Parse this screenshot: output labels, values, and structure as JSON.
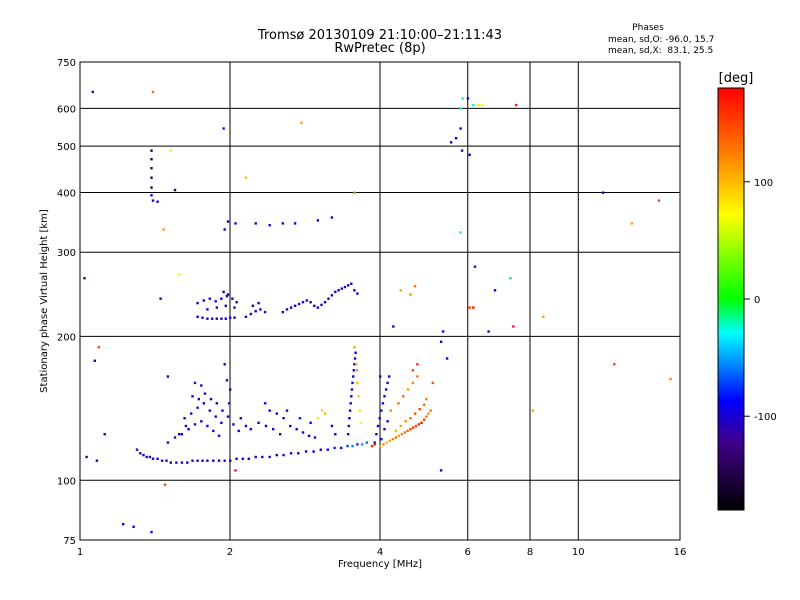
{
  "chart_data": {
    "type": "scatter",
    "title": "Tromsø 20130109 21:10:00–21:11:43",
    "subtitle": "RwPretec (8p)",
    "xlabel": "Frequency [MHz]",
    "ylabel": "Stationary phase Virtual Height [km]",
    "x_scale": "log",
    "y_scale": "log",
    "xlim": [
      1,
      16
    ],
    "ylim": [
      75,
      750
    ],
    "x_ticks": [
      1,
      2,
      4,
      6,
      8,
      10,
      16
    ],
    "y_ticks": [
      75,
      100,
      200,
      300,
      400,
      500,
      600,
      750
    ],
    "grid": true,
    "stats": {
      "title": "Phases",
      "line_o": "mean, sd,O: -96.0, 15.7",
      "line_x": "mean, sd,X:  83.1, 25.5"
    },
    "colorbar": {
      "label": "[deg]",
      "range": [
        -180,
        180
      ],
      "ticks": [
        100,
        0,
        -100
      ]
    },
    "points": [
      [
        1.02,
        265,
        -100
      ],
      [
        1.03,
        112,
        -110
      ],
      [
        1.06,
        650,
        -100
      ],
      [
        1.07,
        178,
        -100
      ],
      [
        1.09,
        190,
        150
      ],
      [
        1.12,
        125,
        -100
      ],
      [
        1.08,
        110,
        -100
      ],
      [
        1.22,
        81,
        -100
      ],
      [
        1.28,
        80,
        -100
      ],
      [
        1.39,
        78,
        -100
      ],
      [
        1.39,
        490,
        -150
      ],
      [
        1.39,
        470,
        -150
      ],
      [
        1.39,
        450,
        -140
      ],
      [
        1.39,
        430,
        -150
      ],
      [
        1.39,
        410,
        -160
      ],
      [
        1.39,
        395,
        -100
      ],
      [
        1.4,
        385,
        -90
      ],
      [
        1.43,
        383,
        -100
      ],
      [
        1.4,
        650,
        130
      ],
      [
        1.5,
        165,
        -100
      ],
      [
        1.55,
        405,
        -140
      ],
      [
        1.52,
        490,
        80
      ],
      [
        1.47,
        335,
        110
      ],
      [
        1.48,
        98,
        150
      ],
      [
        1.58,
        270,
        70
      ],
      [
        1.45,
        240,
        -100
      ],
      [
        1.94,
        545,
        -80
      ],
      [
        1.95,
        335,
        -100
      ],
      [
        1.98,
        348,
        -100
      ],
      [
        2.05,
        345,
        -100
      ],
      [
        2.05,
        105,
        170
      ],
      [
        2.15,
        430,
        100
      ],
      [
        2.25,
        345,
        -100
      ],
      [
        2.4,
        342,
        -100
      ],
      [
        2.55,
        345,
        -100
      ],
      [
        2.7,
        345,
        -100
      ],
      [
        2.78,
        560,
        110
      ],
      [
        3.0,
        350,
        -100
      ],
      [
        3.2,
        355,
        -120
      ],
      [
        3.55,
        400,
        120
      ],
      [
        4.0,
        165,
        -100
      ],
      [
        4.25,
        210,
        -100
      ],
      [
        4.4,
        250,
        110
      ],
      [
        4.6,
        245,
        120
      ],
      [
        4.7,
        255,
        130
      ],
      [
        5.3,
        195,
        -100
      ],
      [
        5.35,
        205,
        -100
      ],
      [
        5.3,
        105,
        -100
      ],
      [
        5.45,
        180,
        -90
      ],
      [
        5.1,
        160,
        140
      ],
      [
        5.05,
        140,
        130
      ],
      [
        5.55,
        510,
        -100
      ],
      [
        5.68,
        520,
        -100
      ],
      [
        5.8,
        545,
        -100
      ],
      [
        5.8,
        600,
        -20
      ],
      [
        5.85,
        630,
        -20
      ],
      [
        5.84,
        490,
        -100
      ],
      [
        5.8,
        330,
        -20
      ],
      [
        6.0,
        630,
        -100
      ],
      [
        6.05,
        480,
        -100
      ],
      [
        6.15,
        610,
        -20
      ],
      [
        6.3,
        610,
        80
      ],
      [
        6.4,
        610,
        70
      ],
      [
        6.2,
        280,
        -100
      ],
      [
        6.05,
        230,
        150
      ],
      [
        6.15,
        230,
        170
      ],
      [
        6.6,
        205,
        -100
      ],
      [
        6.8,
        250,
        -100
      ],
      [
        7.3,
        265,
        -40
      ],
      [
        7.4,
        210,
        170
      ],
      [
        7.5,
        610,
        170
      ],
      [
        8.1,
        140,
        110
      ],
      [
        8.5,
        220,
        110
      ],
      [
        11.2,
        400,
        -100
      ],
      [
        11.8,
        175,
        150
      ],
      [
        12.8,
        345,
        110
      ],
      [
        14.5,
        385,
        150
      ],
      [
        15.3,
        163,
        120
      ],
      [
        1.3,
        116,
        -110
      ],
      [
        1.32,
        114,
        -105
      ],
      [
        1.34,
        113,
        -100
      ],
      [
        1.36,
        112,
        -110
      ],
      [
        1.38,
        112,
        -100
      ],
      [
        1.4,
        111,
        -110
      ],
      [
        1.43,
        111,
        -100
      ],
      [
        1.46,
        110,
        -105
      ],
      [
        1.49,
        110,
        -110
      ],
      [
        1.52,
        109,
        -100
      ],
      [
        1.56,
        109,
        -110
      ],
      [
        1.6,
        109,
        -100
      ],
      [
        1.64,
        109,
        -105
      ],
      [
        1.68,
        110,
        -110
      ],
      [
        1.72,
        110,
        -100
      ],
      [
        1.76,
        110,
        -110
      ],
      [
        1.8,
        110,
        -100
      ],
      [
        1.85,
        110,
        -105
      ],
      [
        1.9,
        110,
        -110
      ],
      [
        1.95,
        110,
        -100
      ],
      [
        2.0,
        110,
        -105
      ],
      [
        2.06,
        111,
        -110
      ],
      [
        2.12,
        111,
        -100
      ],
      [
        2.18,
        111,
        -105
      ],
      [
        2.25,
        112,
        -110
      ],
      [
        2.32,
        112,
        -100
      ],
      [
        2.4,
        112,
        -105
      ],
      [
        2.48,
        113,
        -100
      ],
      [
        2.56,
        113,
        -110
      ],
      [
        2.65,
        114,
        -100
      ],
      [
        2.74,
        114,
        -105
      ],
      [
        2.84,
        115,
        -100
      ],
      [
        2.94,
        115,
        -90
      ],
      [
        3.04,
        116,
        -100
      ],
      [
        3.14,
        116,
        -90
      ],
      [
        3.24,
        117,
        -80
      ],
      [
        3.34,
        117,
        -90
      ],
      [
        3.44,
        118,
        -70
      ],
      [
        3.52,
        118,
        -60
      ],
      [
        3.6,
        119,
        -80
      ],
      [
        3.68,
        119,
        -50
      ],
      [
        3.76,
        120,
        -60
      ],
      [
        1.5,
        120,
        -100
      ],
      [
        1.55,
        123,
        -110
      ],
      [
        1.6,
        125,
        -100
      ],
      [
        1.65,
        128,
        -100
      ],
      [
        1.7,
        131,
        -110
      ],
      [
        1.75,
        133,
        -100
      ],
      [
        1.8,
        130,
        -100
      ],
      [
        1.85,
        127,
        -110
      ],
      [
        1.9,
        124,
        -100
      ],
      [
        1.62,
        135,
        -100
      ],
      [
        1.67,
        138,
        -110
      ],
      [
        1.72,
        142,
        -100
      ],
      [
        1.77,
        145,
        -100
      ],
      [
        1.82,
        140,
        -110
      ],
      [
        1.87,
        136,
        -100
      ],
      [
        1.92,
        132,
        -100
      ],
      [
        1.68,
        150,
        -100
      ],
      [
        1.73,
        148,
        -110
      ],
      [
        1.78,
        152,
        -100
      ],
      [
        1.83,
        148,
        -100
      ],
      [
        1.88,
        145,
        -110
      ],
      [
        1.93,
        140,
        -100
      ],
      [
        1.98,
        136,
        -100
      ],
      [
        2.03,
        131,
        -110
      ],
      [
        2.08,
        127,
        -100
      ],
      [
        1.7,
        160,
        -100
      ],
      [
        1.75,
        158,
        -110
      ],
      [
        1.95,
        175,
        -100
      ],
      [
        1.97,
        162,
        -100
      ],
      [
        2.0,
        155,
        -110
      ],
      [
        1.99,
        145,
        -100
      ],
      [
        1.58,
        125,
        -100
      ],
      [
        1.63,
        130,
        -110
      ],
      [
        2.1,
        135,
        -100
      ],
      [
        2.15,
        130,
        -100
      ],
      [
        2.2,
        128,
        -100
      ],
      [
        2.28,
        132,
        -110
      ],
      [
        2.36,
        130,
        -100
      ],
      [
        2.44,
        128,
        -100
      ],
      [
        2.52,
        125,
        -110
      ],
      [
        2.4,
        140,
        -100
      ],
      [
        2.48,
        138,
        -100
      ],
      [
        2.56,
        135,
        -110
      ],
      [
        2.64,
        130,
        -100
      ],
      [
        2.72,
        128,
        -100
      ],
      [
        2.8,
        126,
        -110
      ],
      [
        2.88,
        124,
        -100
      ],
      [
        2.96,
        123,
        -100
      ],
      [
        2.35,
        145,
        -90
      ],
      [
        2.6,
        140,
        -100
      ],
      [
        2.76,
        135,
        -80
      ],
      [
        2.9,
        132,
        -90
      ],
      [
        3.0,
        135,
        80
      ],
      [
        3.06,
        140,
        90
      ],
      [
        3.1,
        138,
        100
      ],
      [
        3.2,
        130,
        -100
      ],
      [
        3.25,
        125,
        -90
      ],
      [
        3.45,
        125,
        -100
      ],
      [
        3.46,
        130,
        -110
      ],
      [
        3.47,
        135,
        -100
      ],
      [
        3.48,
        140,
        -100
      ],
      [
        3.49,
        145,
        -110
      ],
      [
        3.5,
        150,
        -100
      ],
      [
        3.51,
        155,
        -100
      ],
      [
        3.52,
        160,
        -110
      ],
      [
        3.53,
        165,
        -100
      ],
      [
        3.54,
        170,
        -100
      ],
      [
        3.55,
        175,
        -110
      ],
      [
        3.56,
        180,
        -100
      ],
      [
        3.57,
        185,
        -100
      ],
      [
        3.58,
        175,
        110
      ],
      [
        3.59,
        170,
        120
      ],
      [
        3.6,
        160,
        100
      ],
      [
        3.55,
        190,
        110
      ],
      [
        3.62,
        150,
        90
      ],
      [
        3.64,
        140,
        80
      ],
      [
        3.66,
        132,
        70
      ],
      [
        3.9,
        120,
        -100
      ],
      [
        3.93,
        125,
        -110
      ],
      [
        3.96,
        130,
        -100
      ],
      [
        3.99,
        135,
        -100
      ],
      [
        4.02,
        140,
        -110
      ],
      [
        4.05,
        145,
        -100
      ],
      [
        4.08,
        150,
        -100
      ],
      [
        4.11,
        155,
        -100
      ],
      [
        4.14,
        160,
        -110
      ],
      [
        4.17,
        165,
        -100
      ],
      [
        4.02,
        122,
        -100
      ],
      [
        4.08,
        128,
        -100
      ],
      [
        4.14,
        133,
        -100
      ],
      [
        4.0,
        118,
        110
      ],
      [
        4.06,
        119,
        120
      ],
      [
        4.12,
        120,
        100
      ],
      [
        4.18,
        121,
        110
      ],
      [
        4.24,
        122,
        120
      ],
      [
        4.3,
        123,
        130
      ],
      [
        4.36,
        124,
        110
      ],
      [
        4.42,
        125,
        120
      ],
      [
        4.48,
        126,
        130
      ],
      [
        4.54,
        127,
        140
      ],
      [
        4.6,
        128,
        150
      ],
      [
        4.66,
        129,
        160
      ],
      [
        4.72,
        130,
        150
      ],
      [
        4.78,
        131,
        160
      ],
      [
        4.84,
        132,
        170
      ],
      [
        4.9,
        134,
        150
      ],
      [
        4.95,
        136,
        130
      ],
      [
        5.0,
        138,
        120
      ],
      [
        4.3,
        127,
        100
      ],
      [
        4.4,
        130,
        110
      ],
      [
        4.5,
        133,
        120
      ],
      [
        4.6,
        135,
        130
      ],
      [
        4.7,
        138,
        140
      ],
      [
        4.8,
        141,
        150
      ],
      [
        4.9,
        144,
        130
      ],
      [
        4.95,
        148,
        120
      ],
      [
        4.2,
        140,
        120
      ],
      [
        4.35,
        145,
        130
      ],
      [
        4.45,
        150,
        140
      ],
      [
        4.55,
        155,
        110
      ],
      [
        4.65,
        160,
        120
      ],
      [
        4.75,
        165,
        130
      ],
      [
        4.65,
        170,
        150
      ],
      [
        4.75,
        175,
        160
      ],
      [
        3.85,
        118,
        160
      ],
      [
        3.9,
        119,
        170
      ],
      [
        1.72,
        220,
        -100
      ],
      [
        1.76,
        219,
        -110
      ],
      [
        1.8,
        218,
        -100
      ],
      [
        1.84,
        218,
        -110
      ],
      [
        1.88,
        218,
        -100
      ],
      [
        1.92,
        218,
        -110
      ],
      [
        1.96,
        218,
        -100
      ],
      [
        2.0,
        219,
        -105
      ],
      [
        2.04,
        219,
        -100
      ],
      [
        1.72,
        235,
        -100
      ],
      [
        1.77,
        238,
        -110
      ],
      [
        1.82,
        240,
        -100
      ],
      [
        1.87,
        237,
        -110
      ],
      [
        1.92,
        240,
        -100
      ],
      [
        1.97,
        243,
        -110
      ],
      [
        2.02,
        240,
        -100
      ],
      [
        2.06,
        236,
        -110
      ],
      [
        1.8,
        228,
        -100
      ],
      [
        1.88,
        230,
        -110
      ],
      [
        1.96,
        232,
        -100
      ],
      [
        2.04,
        230,
        -110
      ],
      [
        1.94,
        248,
        -100
      ],
      [
        1.98,
        245,
        -100
      ],
      [
        2.15,
        220,
        -100
      ],
      [
        2.2,
        223,
        -110
      ],
      [
        2.25,
        226,
        -100
      ],
      [
        2.3,
        228,
        -100
      ],
      [
        2.35,
        225,
        -110
      ],
      [
        2.22,
        232,
        -100
      ],
      [
        2.28,
        235,
        -100
      ],
      [
        2.55,
        225,
        -100
      ],
      [
        2.6,
        228,
        -110
      ],
      [
        2.65,
        230,
        -100
      ],
      [
        2.7,
        232,
        -100
      ],
      [
        2.75,
        234,
        -110
      ],
      [
        2.8,
        236,
        -100
      ],
      [
        2.85,
        238,
        -100
      ],
      [
        2.9,
        236,
        -110
      ],
      [
        2.95,
        232,
        -100
      ],
      [
        3.0,
        230,
        -100
      ],
      [
        3.05,
        233,
        -110
      ],
      [
        3.1,
        236,
        -100
      ],
      [
        3.15,
        240,
        -100
      ],
      [
        3.2,
        244,
        -110
      ],
      [
        3.25,
        248,
        -100
      ],
      [
        3.3,
        250,
        -100
      ],
      [
        3.35,
        252,
        -110
      ],
      [
        3.4,
        254,
        -100
      ],
      [
        3.45,
        256,
        -100
      ],
      [
        3.5,
        258,
        -110
      ],
      [
        3.55,
        250,
        -100
      ],
      [
        3.6,
        246,
        -100
      ]
    ]
  }
}
